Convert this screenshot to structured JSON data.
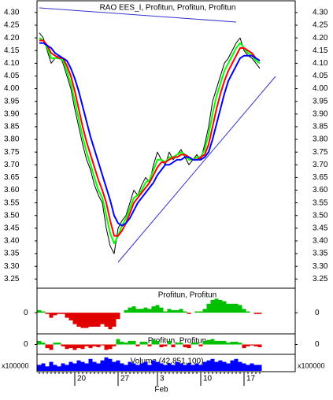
{
  "chart_data": [
    {
      "type": "line",
      "title": "RAO EES_I, Profitun, Profitun, Profitun",
      "categories": [
        null,
        null,
        null,
        null,
        null,
        null,
        null,
        null,
        null,
        "20",
        null,
        null,
        null,
        null,
        null,
        null,
        null,
        null,
        null,
        null,
        "27",
        null,
        null,
        null,
        null,
        null,
        null,
        null,
        null,
        null,
        "3",
        null,
        null,
        null,
        null,
        null,
        null,
        null,
        null,
        null,
        null,
        "10",
        null,
        null,
        null,
        null,
        null,
        null,
        null,
        null,
        null,
        null,
        "17",
        null,
        null,
        null,
        null
      ],
      "x_sublabel": "Feb",
      "series": [
        {
          "color": "#000000",
          "values": [
            4.22,
            4.2,
            4.15,
            4.1,
            4.12,
            4.13,
            4.1,
            4.05,
            4.0,
            3.92,
            3.85,
            3.78,
            3.72,
            3.68,
            3.62,
            3.58,
            3.55,
            3.45,
            3.38,
            3.35,
            3.45,
            3.48,
            3.5,
            3.55,
            3.6,
            3.58,
            3.62,
            3.65,
            3.63,
            3.7,
            3.75,
            3.72,
            3.7,
            3.75,
            3.72,
            3.74,
            3.76,
            3.73,
            3.7,
            3.72,
            3.74,
            3.72,
            3.78,
            3.85,
            3.95,
            4.0,
            4.05,
            4.1,
            4.12,
            4.15,
            4.18,
            4.2,
            4.15,
            4.13,
            4.12,
            4.1,
            4.08
          ]
        },
        {
          "color": "#00ff00",
          "values": [
            4.2,
            4.19,
            4.16,
            4.12,
            4.12,
            4.12,
            4.11,
            4.07,
            4.02,
            3.95,
            3.88,
            3.81,
            3.75,
            3.7,
            3.65,
            3.6,
            3.57,
            3.5,
            3.43,
            3.39,
            3.42,
            3.46,
            3.49,
            3.53,
            3.57,
            3.58,
            3.6,
            3.63,
            3.64,
            3.68,
            3.72,
            3.72,
            3.71,
            3.73,
            3.73,
            3.74,
            3.75,
            3.74,
            3.72,
            3.72,
            3.73,
            3.73,
            3.76,
            3.82,
            3.9,
            3.97,
            4.02,
            4.07,
            4.1,
            4.13,
            4.16,
            4.18,
            4.16,
            4.14,
            4.13,
            4.11,
            4.1
          ]
        },
        {
          "color": "#ff0000",
          "values": [
            4.19,
            4.19,
            4.17,
            4.14,
            4.13,
            4.12,
            4.12,
            4.09,
            4.05,
            3.99,
            3.92,
            3.85,
            3.79,
            3.74,
            3.69,
            3.64,
            3.6,
            3.55,
            3.48,
            3.42,
            3.42,
            3.44,
            3.47,
            3.51,
            3.55,
            3.57,
            3.59,
            3.61,
            3.63,
            3.66,
            3.69,
            3.71,
            3.71,
            3.72,
            3.73,
            3.73,
            3.74,
            3.74,
            3.73,
            3.72,
            3.72,
            3.73,
            3.74,
            3.78,
            3.85,
            3.92,
            3.98,
            4.03,
            4.07,
            4.1,
            4.13,
            4.16,
            4.16,
            4.15,
            4.14,
            4.12,
            4.11
          ]
        },
        {
          "color": "#0000ff",
          "values": [
            4.18,
            4.18,
            4.17,
            4.16,
            4.14,
            4.13,
            4.12,
            4.11,
            4.08,
            4.04,
            3.99,
            3.93,
            3.87,
            3.81,
            3.76,
            3.71,
            3.66,
            3.61,
            3.56,
            3.5,
            3.47,
            3.46,
            3.47,
            3.49,
            3.52,
            3.55,
            3.57,
            3.59,
            3.61,
            3.63,
            3.66,
            3.68,
            3.7,
            3.7,
            3.71,
            3.72,
            3.72,
            3.73,
            3.73,
            3.72,
            3.72,
            3.72,
            3.73,
            3.75,
            3.8,
            3.86,
            3.92,
            3.98,
            4.03,
            4.06,
            4.09,
            4.12,
            4.13,
            4.13,
            4.13,
            4.12,
            4.11
          ]
        }
      ],
      "ylim": [
        3.22,
        4.34
      ],
      "yticks": [
        {
          "value": 4.3,
          "label": "4.30"
        },
        {
          "value": 4.25,
          "label": "4.25"
        },
        {
          "value": 4.2,
          "label": "4.20"
        },
        {
          "value": 4.15,
          "label": "4.15"
        },
        {
          "value": 4.1,
          "label": "4.10"
        },
        {
          "value": 4.05,
          "label": "4.05"
        },
        {
          "value": 4.0,
          "label": "4.00"
        },
        {
          "value": 3.95,
          "label": "3.95"
        },
        {
          "value": 3.9,
          "label": "3.90"
        },
        {
          "value": 3.85,
          "label": "3.85"
        },
        {
          "value": 3.8,
          "label": "3.80"
        },
        {
          "value": 3.75,
          "label": "3.75"
        },
        {
          "value": 3.7,
          "label": "3.70"
        },
        {
          "value": 3.65,
          "label": "3.65"
        },
        {
          "value": 3.6,
          "label": "3.60"
        },
        {
          "value": 3.55,
          "label": "3.55"
        },
        {
          "value": 3.5,
          "label": "3.50"
        },
        {
          "value": 3.45,
          "label": "3.45"
        },
        {
          "value": 3.4,
          "label": "3.40"
        },
        {
          "value": 3.35,
          "label": "3.35"
        },
        {
          "value": 3.3,
          "label": "3.30"
        },
        {
          "value": 3.25,
          "label": "3.25"
        }
      ]
    },
    {
      "type": "bar",
      "title": "Profitun, Profitun",
      "up_color": "#00c000",
      "down_color": "#e00000",
      "values": [
        0.1,
        0.05,
        -0.05,
        -0.2,
        -0.1,
        -0.05,
        -0.05,
        -0.2,
        -0.3,
        -0.45,
        -0.55,
        -0.6,
        -0.6,
        -0.55,
        -0.55,
        -0.55,
        -0.45,
        -0.55,
        -0.65,
        -0.55,
        -0.25,
        0,
        0.1,
        0.2,
        0.25,
        0.15,
        0.15,
        0.2,
        0.15,
        0.25,
        0.3,
        0.2,
        0.05,
        0.15,
        0.1,
        0.1,
        0.15,
        0.05,
        -0.05,
        0,
        0.05,
        0.05,
        0.15,
        0.35,
        0.5,
        0.55,
        0.5,
        0.45,
        0.35,
        0.35,
        0.35,
        0.3,
        0.15,
        0.05,
        0,
        -0.05,
        -0.05
      ],
      "ylim": [
        -0.8,
        0.9
      ],
      "yticks": [
        0
      ]
    },
    {
      "type": "bar",
      "title": "Profitun, Profitun",
      "up_color": "#00c000",
      "down_color": "#e00000",
      "values": [
        0.2,
        0.1,
        -0.2,
        -0.3,
        0.1,
        0.1,
        -0.1,
        -0.25,
        -0.2,
        -0.3,
        -0.2,
        -0.25,
        -0.1,
        -0.2,
        -0.1,
        -0.15,
        -0.05,
        -0.3,
        -0.25,
        -0.1,
        0.3,
        0.15,
        0.1,
        0.2,
        0.2,
        -0.1,
        0.15,
        0.15,
        -0.1,
        0.25,
        0.2,
        -0.15,
        -0.1,
        0.2,
        -0.15,
        0.1,
        0.1,
        -0.15,
        -0.2,
        0.1,
        0.1,
        -0.1,
        0.2,
        0.25,
        0.3,
        0.2,
        0.2,
        0.2,
        0.1,
        0.15,
        0.15,
        0.1,
        -0.2,
        -0.1,
        -0.05,
        -0.1,
        -0.15
      ],
      "ylim": [
        -0.5,
        0.5
      ],
      "yticks": [
        0
      ]
    },
    {
      "type": "bar",
      "title": "Volume (42,851,100)",
      "unit_label": "x100000",
      "color": "#0000ff",
      "values": [
        4,
        5,
        3,
        6,
        4,
        3,
        5,
        4,
        6,
        5,
        7,
        6,
        5,
        8,
        6,
        5,
        7,
        9,
        8,
        6,
        7,
        5,
        4,
        6,
        5,
        4,
        5,
        6,
        4,
        7,
        6,
        5,
        4,
        5,
        4,
        6,
        5,
        4,
        5,
        4,
        5,
        4,
        6,
        7,
        8,
        6,
        7,
        6,
        5,
        7,
        8,
        6,
        5,
        4,
        5,
        4,
        4
      ],
      "ylim": [
        0,
        10
      ]
    }
  ]
}
